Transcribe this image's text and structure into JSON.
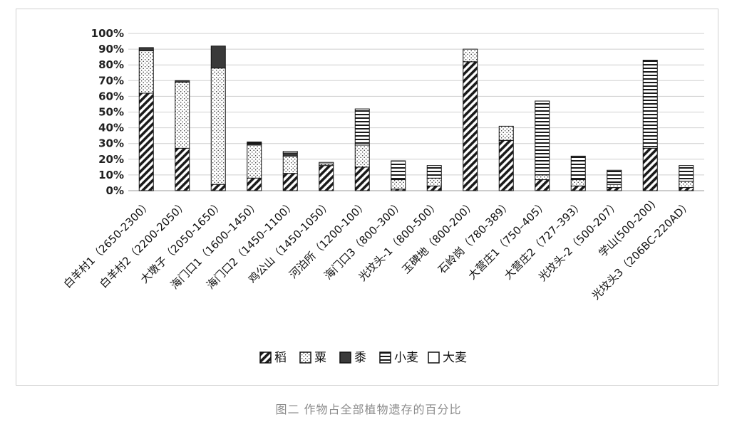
{
  "caption": "图二 作物占全部植物遗存的百分比",
  "chart_data": {
    "type": "bar",
    "stacked": true,
    "ylim": [
      0,
      100
    ],
    "yticks": [
      0,
      10,
      20,
      30,
      40,
      50,
      60,
      70,
      80,
      90,
      100
    ],
    "ytick_suffix": "%",
    "grid": true,
    "legend_position": "bottom",
    "categories": [
      "白羊村1（2650-2300）",
      "白羊村2（2200-2050）",
      "大墩子（2050-1650）",
      "海门口1（1600–1450）",
      "海门口2（1450–1100）",
      "鸡公山（1450-1050）",
      "河泊所（1200-100）",
      "海门口3（800–300）",
      "光坟头-1（800-500）",
      "玉碑地（800-200）",
      "石岭岗（780-389）",
      "大营庄1（750–405）",
      "大营庄2（727–393）",
      "光坟头-2（500-207）",
      "学山(500-200)",
      "光坟头3（206BC-220AD）"
    ],
    "series": [
      {
        "name": "稻",
        "pattern": "diagonal-hatch",
        "values": [
          62,
          27,
          4,
          8,
          11,
          16,
          15,
          1,
          3,
          82,
          32,
          7,
          3,
          2,
          27,
          2
        ]
      },
      {
        "name": "粟",
        "pattern": "dots",
        "values": [
          27,
          42,
          74,
          21,
          11,
          1,
          14,
          6,
          5,
          8,
          9,
          3,
          4,
          2,
          1,
          4
        ]
      },
      {
        "name": "黍",
        "pattern": "solid-dark",
        "values": [
          2,
          1,
          14,
          1,
          2,
          0,
          0,
          0,
          0,
          0,
          0,
          0,
          0,
          0,
          0,
          0
        ]
      },
      {
        "name": "小麦",
        "pattern": "horizontal-lines",
        "values": [
          0,
          0,
          0,
          1,
          1,
          1,
          23,
          12,
          8,
          0,
          0,
          47,
          15,
          9,
          55,
          10
        ]
      },
      {
        "name": "大麦",
        "pattern": "blank",
        "values": [
          0,
          0,
          0,
          0,
          0,
          0,
          0,
          0,
          0,
          0,
          0,
          0,
          0,
          0,
          0,
          0
        ]
      }
    ]
  }
}
